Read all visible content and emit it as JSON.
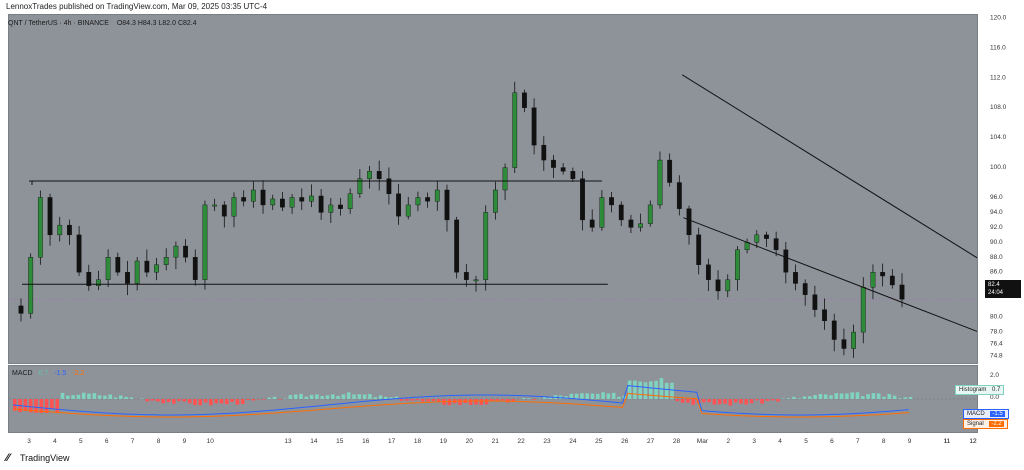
{
  "publisher": "LennoxTrades published on TradingView.com, Mar 09, 2025 03:35 UTC-4",
  "legend": {
    "symbol": "QNT / TetherUS · 4h · BINANCE",
    "ohlc": "O84.3  H84.3  L82.0  C82.4"
  },
  "price_label": {
    "value": "82.4",
    "countdown": "24:04"
  },
  "macd": {
    "title": "MACD",
    "v1": "0.7",
    "v2": "-1.5",
    "v3": "-2.2"
  },
  "macd_tags": {
    "histogram_label": "Histogram",
    "histogram_value": "0.7",
    "macd_label": "MACD",
    "macd_value": "-1.5",
    "signal_label": "Signal",
    "signal_value": "-2.2"
  },
  "footer": {
    "brand": "TradingView"
  },
  "colors": {
    "up": "#2e8b3a",
    "down": "#111111",
    "pane_bg": "#8e939a",
    "hist_up": "#7fd3c0",
    "hist_down": "#ff5252",
    "macd_line": "#2962ff",
    "signal_line": "#ff6d00"
  },
  "chart_data": {
    "type": "candlestick",
    "title": "QNT / TetherUS · 4h · BINANCE",
    "x_ticks": [
      "3",
      "4",
      "5",
      "6",
      "7",
      "8",
      "9",
      "10",
      "11",
      "12",
      "13",
      "14",
      "15",
      "16",
      "17",
      "18",
      "19",
      "20",
      "21",
      "22",
      "23",
      "24",
      "25",
      "26",
      "27",
      "28",
      "Mar",
      "2",
      "3",
      "4",
      "5",
      "6",
      "7",
      "8",
      "9",
      "11",
      "12"
    ],
    "y_ticks": [
      "120.0",
      "116.0",
      "112.0",
      "108.0",
      "104.0",
      "100.0",
      "96.0",
      "94.0",
      "92.0",
      "90.0",
      "88.0",
      "86.0",
      "84.0",
      "80.0",
      "78.0",
      "76.4",
      "74.8"
    ],
    "macd_y_ticks": [
      "2.0",
      "0.0",
      "-2.0"
    ],
    "close_path": [
      80.5,
      88,
      96,
      91,
      92.3,
      91,
      86,
      84.2,
      85,
      88,
      86,
      84.5,
      87.5,
      86,
      87,
      88,
      89.5,
      88,
      85,
      95,
      95,
      93.5,
      96,
      95.5,
      97,
      95,
      95.8,
      94.7,
      96,
      95.5,
      96.2,
      94,
      95,
      94.5,
      96.5,
      98.5,
      99.5,
      98.5,
      96.5,
      93.5,
      95,
      96,
      95.5,
      97,
      93,
      86,
      85,
      85,
      94,
      97,
      100,
      110,
      108,
      103,
      101,
      100,
      99.5,
      98.5,
      93,
      92,
      96,
      95,
      93,
      92,
      92.5,
      95,
      101,
      98,
      94.5,
      91,
      87,
      85,
      83.5,
      85,
      89,
      90,
      91,
      90.5,
      89,
      86,
      84.5,
      83,
      81,
      79.5,
      77,
      75.8,
      78,
      84,
      86,
      85.5,
      84.3,
      82.4
    ],
    "range_box": {
      "top": 98.2,
      "bottom": 84.4
    },
    "channel_upper": [
      [
        110.8,
        112.4
      ],
      [
        171.2,
        82.9
      ]
    ],
    "channel_lower": [
      [
        111.0,
        93.3
      ],
      [
        172.0,
        74.7
      ]
    ]
  }
}
